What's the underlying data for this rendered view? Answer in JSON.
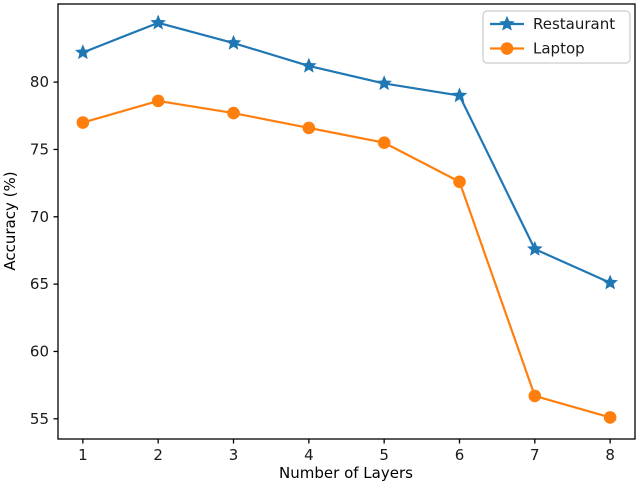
{
  "chart_data": {
    "type": "line",
    "title": "",
    "xlabel": "Number of Layers",
    "ylabel": "Accuracy (%)",
    "x": [
      1,
      2,
      3,
      4,
      5,
      6,
      7,
      8
    ],
    "series": [
      {
        "name": "Restaurant",
        "color": "#1f77b4",
        "marker": "star",
        "values": [
          82.2,
          84.4,
          82.9,
          81.2,
          79.9,
          79.0,
          67.6,
          65.1
        ]
      },
      {
        "name": "Laptop",
        "color": "#ff7f0e",
        "marker": "circle",
        "values": [
          77.0,
          78.6,
          77.7,
          76.6,
          75.5,
          72.6,
          56.7,
          55.1
        ]
      }
    ],
    "xticks": [
      1,
      2,
      3,
      4,
      5,
      6,
      7,
      8
    ],
    "yticks": [
      55,
      60,
      65,
      70,
      75,
      80
    ],
    "xlim": [
      0.67,
      8.33
    ],
    "ylim": [
      53.5,
      85.8
    ],
    "grid": false,
    "legend": {
      "position": "upper-right",
      "entries": [
        "Restaurant",
        "Laptop"
      ]
    },
    "colors": {
      "axis": "#000000",
      "text": "#1a1a1a",
      "legend_border": "#cccccc",
      "background": "#ffffff"
    }
  }
}
